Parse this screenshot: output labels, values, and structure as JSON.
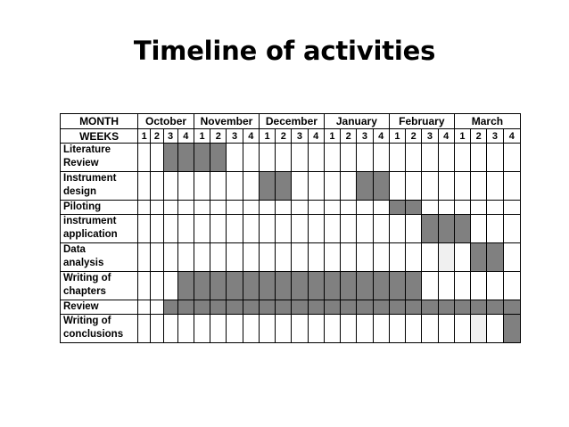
{
  "title": "Timeline of activities",
  "table": {
    "month_label": "MONTH",
    "weeks_label": "WEEKS",
    "months": [
      "October",
      "November",
      "December",
      "January",
      "February",
      "March"
    ],
    "weeks": [
      "1",
      "2",
      "3",
      "4"
    ],
    "shade_color": "#808080",
    "activities": [
      {
        "lines": [
          "Literature",
          "Review"
        ],
        "weeks": [
          0,
          0,
          1,
          1,
          1,
          1,
          0,
          0,
          0,
          0,
          0,
          0,
          0,
          0,
          0,
          0,
          0,
          0,
          0,
          0,
          0,
          0,
          0,
          0
        ]
      },
      {
        "lines": [
          "Instrument",
          "design"
        ],
        "weeks": [
          0,
          0,
          0,
          0,
          0,
          0,
          0,
          0,
          1,
          1,
          0,
          0,
          0,
          0,
          1,
          1,
          0,
          0,
          0,
          0,
          0,
          0,
          0,
          0
        ]
      },
      {
        "lines": [
          "Piloting"
        ],
        "weeks": [
          0,
          0,
          0,
          0,
          0,
          0,
          0,
          0,
          0,
          0,
          0,
          0,
          0,
          0,
          0,
          0,
          1,
          1,
          0,
          0,
          0,
          0,
          0,
          0
        ]
      },
      {
        "lines": [
          "instrument",
          "application"
        ],
        "weeks": [
          0,
          0,
          0,
          0,
          0,
          0,
          0,
          0,
          0,
          0,
          0,
          0,
          0,
          0,
          0,
          0,
          0,
          0,
          1,
          1,
          1,
          0,
          0,
          0
        ]
      },
      {
        "lines": [
          "Data",
          "analysis"
        ],
        "weeks": [
          0,
          0,
          0,
          0,
          0,
          0,
          0,
          0,
          0,
          0,
          0,
          0,
          0,
          0,
          0,
          0,
          0,
          0,
          0,
          2,
          0,
          1,
          1,
          0
        ]
      },
      {
        "lines": [
          "Writing of",
          "chapters"
        ],
        "weeks": [
          0,
          0,
          0,
          1,
          1,
          1,
          1,
          1,
          1,
          1,
          1,
          1,
          1,
          1,
          1,
          1,
          1,
          1,
          0,
          0,
          0,
          0,
          0,
          0
        ]
      },
      {
        "lines": [
          "Review"
        ],
        "weeks": [
          0,
          0,
          1,
          1,
          1,
          1,
          1,
          1,
          1,
          1,
          1,
          1,
          1,
          1,
          1,
          1,
          1,
          1,
          1,
          1,
          1,
          1,
          1,
          1
        ]
      },
      {
        "lines": [
          "Writing of",
          "conclusions"
        ],
        "weeks": [
          0,
          0,
          0,
          0,
          0,
          0,
          0,
          0,
          0,
          0,
          0,
          0,
          0,
          0,
          0,
          0,
          0,
          0,
          0,
          0,
          0,
          2,
          0,
          1
        ]
      }
    ]
  }
}
